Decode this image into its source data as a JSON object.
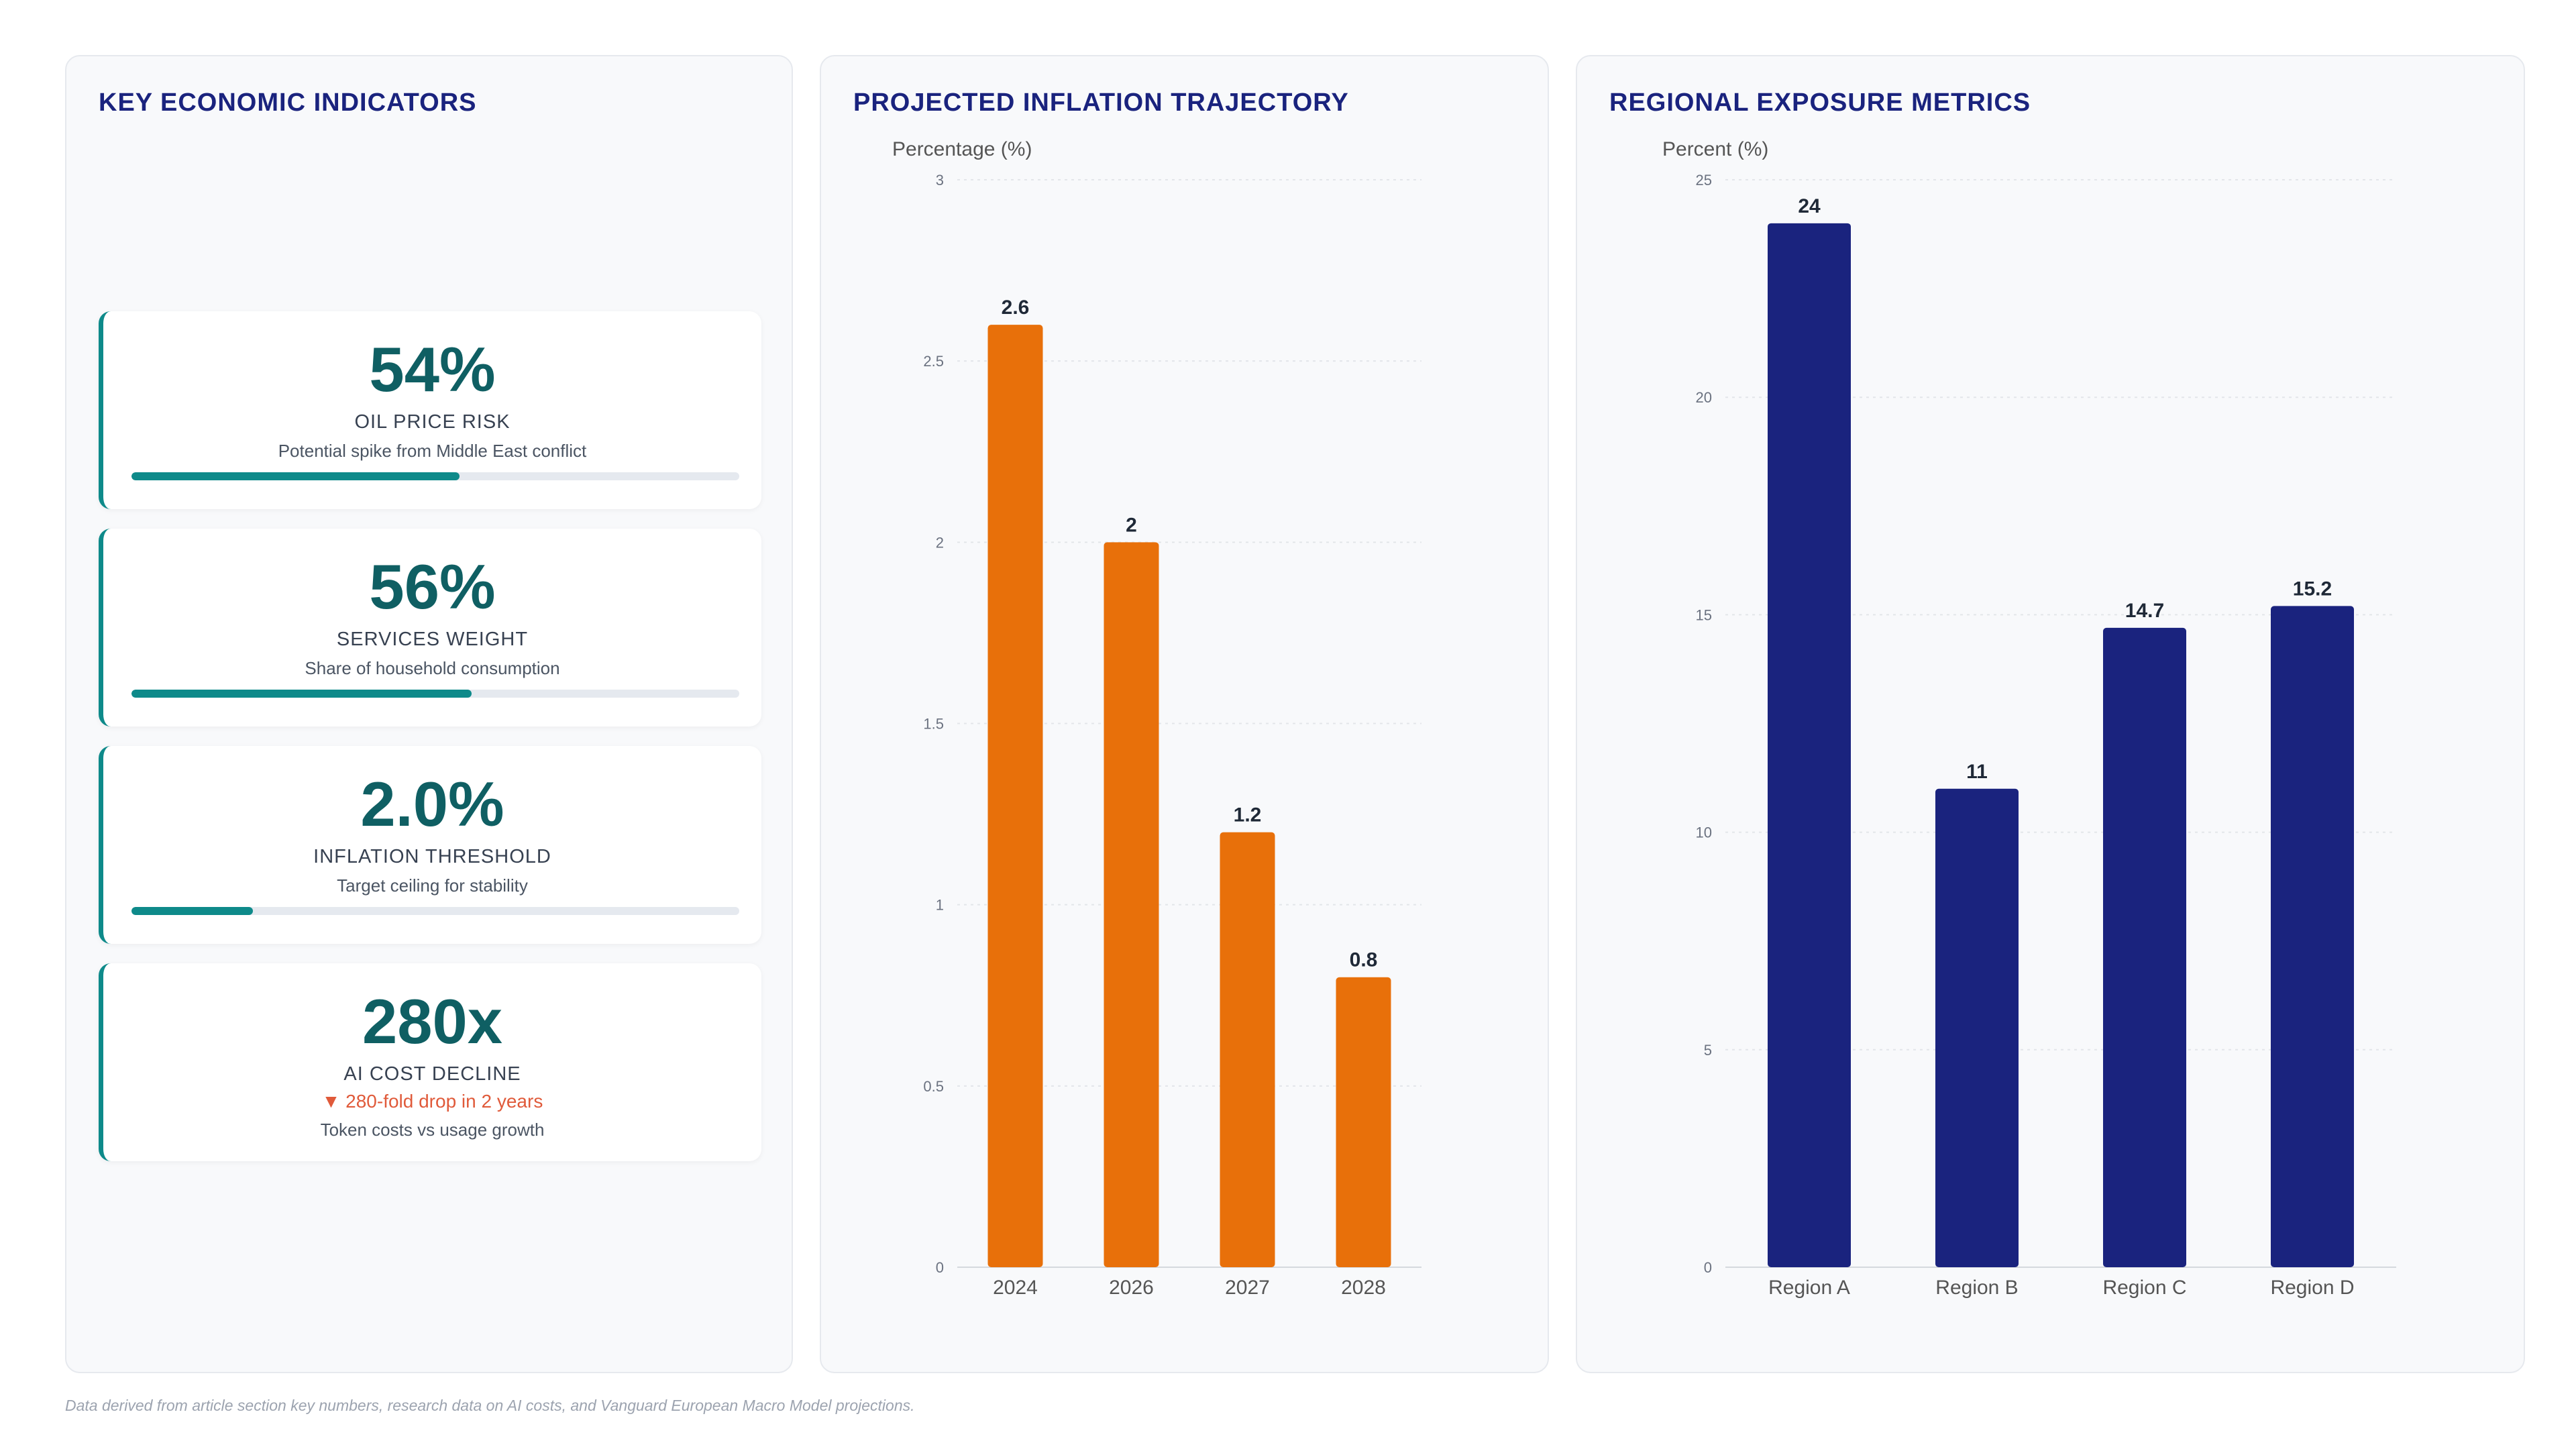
{
  "footnote": "Data derived from article section key numbers, research data on AI costs, and Vanguard European Macro Model projections.",
  "kpi_panel": {
    "title": "KEY ECONOMIC INDICATORS",
    "cards": [
      {
        "value": "54%",
        "label": "OIL PRICE RISK",
        "sub": "Potential spike from Middle East conflict",
        "progress": 0.54
      },
      {
        "value": "56%",
        "label": "SERVICES WEIGHT",
        "sub": "Share of household consumption",
        "progress": 0.56
      },
      {
        "value": "2.0%",
        "label": "INFLATION THRESHOLD",
        "sub": "Target ceiling for stability",
        "progress": 0.2
      },
      {
        "value": "280x",
        "label": "AI COST DECLINE",
        "trend": "▼ 280-fold drop in 2 years",
        "sub": "Token costs vs usage growth"
      }
    ]
  },
  "colors": {
    "accent_teal": "#0e8a8a",
    "kpi_value": "#0f5f63",
    "orange": "#e8700a",
    "navy": "#1a237e",
    "trend_red": "#e05a3a"
  },
  "chart_data": [
    {
      "type": "bar",
      "title": "PROJECTED INFLATION TRAJECTORY",
      "ylabel": "Percentage (%)",
      "xlabel": "",
      "categories": [
        "2024",
        "2026",
        "2027",
        "2028"
      ],
      "values": [
        2.6,
        2,
        1.2,
        0.8
      ],
      "value_labels": [
        "2.6",
        "2",
        "1.2",
        "0.8"
      ],
      "ylim": [
        0,
        3
      ],
      "yticks": [
        0,
        0.5,
        1,
        1.5,
        2,
        2.5,
        3
      ],
      "ytick_labels": [
        "0",
        "0.5",
        "1",
        "1.5",
        "2",
        "2.5",
        "3"
      ],
      "grid": true,
      "color": "#e8700a"
    },
    {
      "type": "bar",
      "title": "REGIONAL EXPOSURE METRICS",
      "ylabel": "Percent (%)",
      "xlabel": "",
      "categories": [
        "Region A",
        "Region B",
        "Region C",
        "Region D"
      ],
      "values": [
        24,
        11,
        14.7,
        15.2
      ],
      "value_labels": [
        "24",
        "11",
        "14.7",
        "15.2"
      ],
      "ylim": [
        0,
        25
      ],
      "yticks": [
        0,
        5,
        10,
        15,
        20,
        25
      ],
      "ytick_labels": [
        "0",
        "5",
        "10",
        "15",
        "20",
        "25"
      ],
      "grid": true,
      "color": "#1a237e"
    }
  ]
}
